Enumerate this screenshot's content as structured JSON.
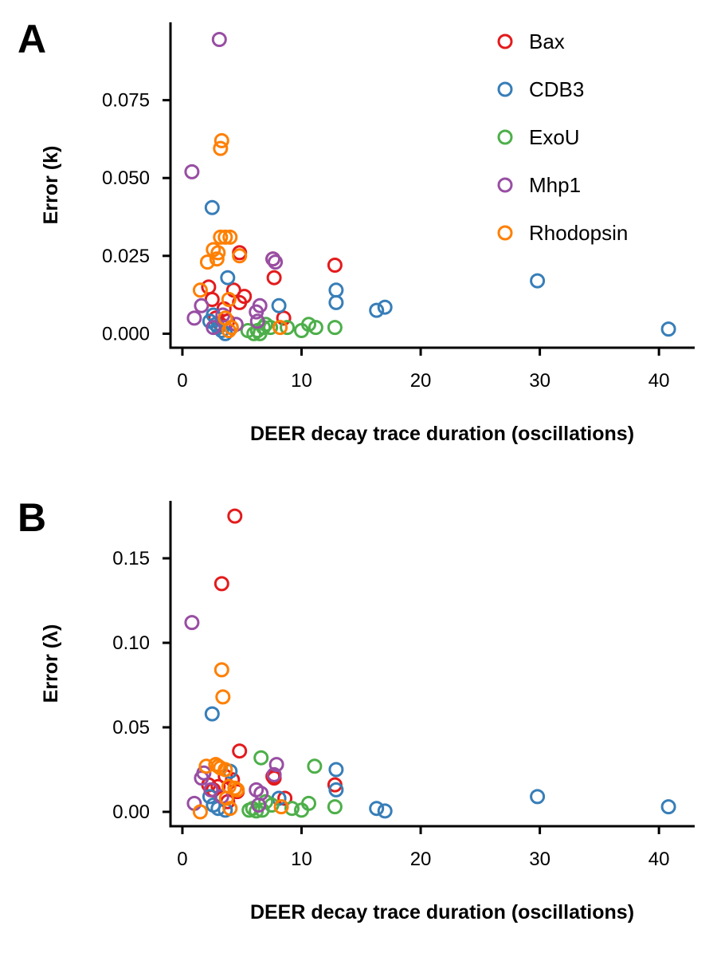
{
  "legend": [
    {
      "name": "Bax",
      "color": "#e41a1c"
    },
    {
      "name": "CDB3",
      "color": "#377eb8"
    },
    {
      "name": "ExoU",
      "color": "#4daf4a"
    },
    {
      "name": "Mhp1",
      "color": "#984ea3"
    },
    {
      "name": "Rhodopsin",
      "color": "#ff7f00"
    }
  ],
  "chart_data": [
    {
      "panel": "A",
      "type": "scatter",
      "xlabel": "DEER decay trace duration (oscillations)",
      "ylabel": "Error (k)",
      "xlim": [
        -1,
        43
      ],
      "ylim": [
        -0.0045,
        0.1
      ],
      "xticks": [
        0,
        10,
        20,
        30,
        40
      ],
      "xtick_labels": [
        "0",
        "10",
        "20",
        "30",
        "40"
      ],
      "yticks": [
        0,
        0.025,
        0.05,
        0.075
      ],
      "ytick_labels": [
        "0.000",
        "0.025",
        "0.050",
        "0.075"
      ],
      "grid": false,
      "legend_position": "top-right",
      "series": [
        {
          "name": "Bax",
          "color": "#e41a1c",
          "points": [
            [
              2.2,
              0.015
            ],
            [
              2.5,
              0.011
            ],
            [
              2.8,
              0.005
            ],
            [
              3.2,
              0.003
            ],
            [
              3.5,
              0.008
            ],
            [
              4.3,
              0.014
            ],
            [
              4.8,
              0.01
            ],
            [
              5.2,
              0.012
            ],
            [
              4.8,
              0.026
            ],
            [
              7.6,
              0.024
            ],
            [
              7.7,
              0.018
            ],
            [
              8.5,
              0.005
            ],
            [
              12.8,
              0.022
            ],
            [
              3.8,
              0.004
            ]
          ]
        },
        {
          "name": "CDB3",
          "color": "#377eb8",
          "points": [
            [
              2.5,
              0.0405
            ],
            [
              3.8,
              0.018
            ],
            [
              2.6,
              0.006
            ],
            [
              2.8,
              0.003
            ],
            [
              3.3,
              0.001
            ],
            [
              3.6,
              0.0
            ],
            [
              4.1,
              0.002
            ],
            [
              8.1,
              0.009
            ],
            [
              12.9,
              0.014
            ],
            [
              12.9,
              0.01
            ],
            [
              16.3,
              0.0075
            ],
            [
              17.0,
              0.0085
            ],
            [
              29.8,
              0.017
            ],
            [
              40.8,
              0.0015
            ],
            [
              2.3,
              0.004
            ],
            [
              3.0,
              0.002
            ]
          ]
        },
        {
          "name": "ExoU",
          "color": "#4daf4a",
          "points": [
            [
              5.5,
              0.001
            ],
            [
              6.0,
              0.0
            ],
            [
              6.5,
              0.0
            ],
            [
              6.8,
              0.002
            ],
            [
              7.0,
              0.003
            ],
            [
              7.4,
              0.002
            ],
            [
              8.8,
              0.002
            ],
            [
              10.0,
              0.001
            ],
            [
              10.6,
              0.003
            ],
            [
              11.2,
              0.002
            ],
            [
              12.8,
              0.002
            ],
            [
              6.3,
              0.001
            ]
          ]
        },
        {
          "name": "Mhp1",
          "color": "#984ea3",
          "points": [
            [
              3.1,
              0.0945
            ],
            [
              0.8,
              0.052
            ],
            [
              1.0,
              0.005
            ],
            [
              1.6,
              0.009
            ],
            [
              2.6,
              0.002
            ],
            [
              3.4,
              0.006
            ],
            [
              4.5,
              0.003
            ],
            [
              6.2,
              0.007
            ],
            [
              6.5,
              0.009
            ],
            [
              7.8,
              0.023
            ],
            [
              7.6,
              0.024
            ],
            [
              6.3,
              0.004
            ]
          ]
        },
        {
          "name": "Rhodopsin",
          "color": "#ff7f00",
          "points": [
            [
              3.3,
              0.062
            ],
            [
              3.2,
              0.0595
            ],
            [
              2.1,
              0.023
            ],
            [
              2.6,
              0.027
            ],
            [
              3.0,
              0.026
            ],
            [
              3.2,
              0.031
            ],
            [
              3.6,
              0.031
            ],
            [
              4.0,
              0.031
            ],
            [
              4.8,
              0.025
            ],
            [
              2.9,
              0.024
            ],
            [
              1.5,
              0.014
            ],
            [
              3.9,
              0.011
            ],
            [
              3.6,
              0.005
            ],
            [
              4.1,
              0.002
            ],
            [
              3.9,
              0.001
            ],
            [
              8.2,
              0.002
            ]
          ]
        }
      ]
    },
    {
      "panel": "B",
      "type": "scatter",
      "xlabel": "DEER decay trace duration (oscillations)",
      "ylabel": "Error (λ)",
      "xlim": [
        -1,
        43
      ],
      "ylim": [
        -0.0085,
        0.184
      ],
      "xticks": [
        0,
        10,
        20,
        30,
        40
      ],
      "xtick_labels": [
        "0",
        "10",
        "20",
        "30",
        "40"
      ],
      "yticks": [
        0,
        0.05,
        0.1,
        0.15
      ],
      "ytick_labels": [
        "0.00",
        "0.05",
        "0.10",
        "0.15"
      ],
      "grid": false,
      "series": [
        {
          "name": "Bax",
          "color": "#e41a1c",
          "points": [
            [
              4.4,
              0.175
            ],
            [
              3.3,
              0.135
            ],
            [
              4.8,
              0.036
            ],
            [
              2.2,
              0.016
            ],
            [
              2.6,
              0.013
            ],
            [
              3.0,
              0.015
            ],
            [
              3.6,
              0.021
            ],
            [
              4.2,
              0.019
            ],
            [
              4.6,
              0.012
            ],
            [
              7.6,
              0.021
            ],
            [
              7.7,
              0.02
            ],
            [
              8.6,
              0.008
            ],
            [
              12.8,
              0.016
            ],
            [
              3.8,
              0.006
            ]
          ]
        },
        {
          "name": "CDB3",
          "color": "#377eb8",
          "points": [
            [
              2.5,
              0.058
            ],
            [
              2.3,
              0.009
            ],
            [
              2.6,
              0.004
            ],
            [
              3.0,
              0.002
            ],
            [
              3.6,
              0.001
            ],
            [
              4.0,
              0.024
            ],
            [
              8.1,
              0.008
            ],
            [
              12.9,
              0.025
            ],
            [
              12.9,
              0.013
            ],
            [
              16.3,
              0.002
            ],
            [
              17.0,
              0.0005
            ],
            [
              29.8,
              0.009
            ],
            [
              40.8,
              0.003
            ]
          ]
        },
        {
          "name": "ExoU",
          "color": "#4daf4a",
          "points": [
            [
              6.6,
              0.032
            ],
            [
              11.1,
              0.027
            ],
            [
              5.6,
              0.001
            ],
            [
              6.2,
              0.0005
            ],
            [
              6.7,
              0.001
            ],
            [
              7.0,
              0.006
            ],
            [
              7.5,
              0.004
            ],
            [
              9.2,
              0.002
            ],
            [
              10.0,
              0.001
            ],
            [
              10.6,
              0.005
            ],
            [
              12.8,
              0.003
            ],
            [
              5.9,
              0.002
            ]
          ]
        },
        {
          "name": "Mhp1",
          "color": "#984ea3",
          "points": [
            [
              0.8,
              0.112
            ],
            [
              1.0,
              0.005
            ],
            [
              1.6,
              0.02
            ],
            [
              1.8,
              0.023
            ],
            [
              2.4,
              0.013
            ],
            [
              3.3,
              0.009
            ],
            [
              6.2,
              0.013
            ],
            [
              6.6,
              0.011
            ],
            [
              7.9,
              0.028
            ],
            [
              7.7,
              0.022
            ],
            [
              6.4,
              0.004
            ]
          ]
        },
        {
          "name": "Rhodopsin",
          "color": "#ff7f00",
          "points": [
            [
              3.3,
              0.084
            ],
            [
              3.4,
              0.068
            ],
            [
              2.0,
              0.027
            ],
            [
              2.8,
              0.028
            ],
            [
              3.0,
              0.027
            ],
            [
              3.2,
              0.026
            ],
            [
              3.6,
              0.025
            ],
            [
              3.9,
              0.015
            ],
            [
              4.4,
              0.014
            ],
            [
              3.7,
              0.008
            ],
            [
              4.0,
              0.002
            ],
            [
              1.5,
              0.0
            ],
            [
              4.6,
              0.013
            ],
            [
              8.3,
              0.003
            ]
          ]
        }
      ]
    }
  ]
}
